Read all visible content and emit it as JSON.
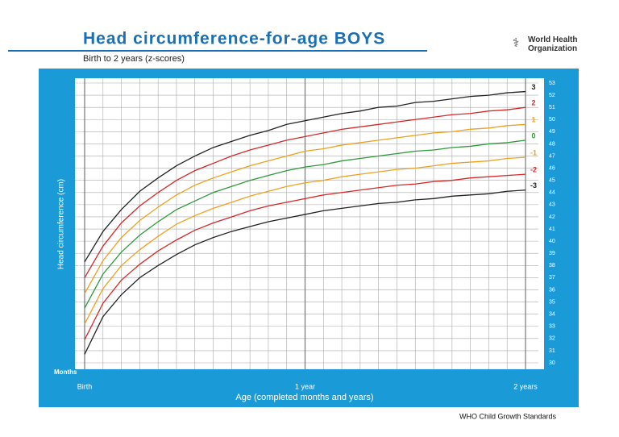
{
  "chart_data": {
    "type": "line",
    "title": "Head circumference-for-age BOYS",
    "subtitle": "Birth to 2 years (z-scores)",
    "organization": "World Health Organization",
    "footer": "WHO Child Growth Standards",
    "xlabel": "Age (completed months and years)",
    "ylabel": "Head circumference (cm)",
    "x_unit_label": "Months",
    "x": [
      0,
      1,
      2,
      3,
      4,
      5,
      6,
      7,
      8,
      9,
      10,
      11,
      12,
      13,
      14,
      15,
      16,
      17,
      18,
      19,
      20,
      21,
      22,
      23,
      24
    ],
    "xlim": [
      0,
      24
    ],
    "xticks": [
      {
        "value": 0,
        "label": "Birth"
      },
      {
        "value": 12,
        "label": "1 year"
      },
      {
        "value": 24,
        "label": "2 years"
      }
    ],
    "ylim": [
      30,
      53
    ],
    "yticks": [
      30,
      31,
      32,
      33,
      34,
      35,
      36,
      37,
      38,
      39,
      40,
      41,
      42,
      43,
      44,
      45,
      46,
      47,
      48,
      49,
      50,
      51,
      52,
      53
    ],
    "grid": true,
    "series": [
      {
        "name": "3",
        "color": "#222222",
        "values": [
          38.3,
          40.8,
          42.6,
          44.1,
          45.2,
          46.2,
          47.0,
          47.7,
          48.2,
          48.7,
          49.1,
          49.6,
          49.9,
          50.2,
          50.5,
          50.7,
          51.0,
          51.1,
          51.4,
          51.5,
          51.7,
          51.9,
          52.0,
          52.2,
          52.3
        ]
      },
      {
        "name": "2",
        "color": "#d62828",
        "values": [
          37.0,
          39.6,
          41.5,
          42.9,
          44.0,
          45.0,
          45.8,
          46.4,
          47.0,
          47.5,
          47.9,
          48.3,
          48.6,
          48.9,
          49.2,
          49.4,
          49.6,
          49.8,
          50.0,
          50.2,
          50.4,
          50.5,
          50.7,
          50.8,
          51.0
        ]
      },
      {
        "name": "1",
        "color": "#f0a020",
        "values": [
          35.7,
          38.4,
          40.3,
          41.7,
          42.8,
          43.8,
          44.6,
          45.2,
          45.7,
          46.2,
          46.6,
          47.0,
          47.4,
          47.6,
          47.9,
          48.1,
          48.3,
          48.5,
          48.7,
          48.9,
          49.0,
          49.2,
          49.3,
          49.5,
          49.6
        ]
      },
      {
        "name": "0",
        "color": "#2e9a3a",
        "values": [
          34.5,
          37.3,
          39.1,
          40.5,
          41.6,
          42.6,
          43.3,
          44.0,
          44.5,
          45.0,
          45.4,
          45.8,
          46.1,
          46.3,
          46.6,
          46.8,
          47.0,
          47.2,
          47.4,
          47.5,
          47.7,
          47.8,
          48.0,
          48.1,
          48.3
        ]
      },
      {
        "name": "-1",
        "color": "#f0a020",
        "values": [
          33.2,
          36.1,
          38.0,
          39.3,
          40.4,
          41.4,
          42.1,
          42.7,
          43.2,
          43.7,
          44.1,
          44.5,
          44.8,
          45.0,
          45.3,
          45.5,
          45.7,
          45.9,
          46.0,
          46.2,
          46.4,
          46.5,
          46.6,
          46.8,
          46.9
        ]
      },
      {
        "name": "-2",
        "color": "#d62828",
        "values": [
          31.9,
          34.9,
          36.8,
          38.1,
          39.2,
          40.1,
          40.9,
          41.5,
          42.0,
          42.5,
          42.9,
          43.2,
          43.5,
          43.8,
          44.0,
          44.2,
          44.4,
          44.6,
          44.7,
          44.9,
          45.0,
          45.2,
          45.3,
          45.4,
          45.5
        ]
      },
      {
        "name": "-3",
        "color": "#222222",
        "values": [
          30.7,
          33.8,
          35.6,
          37.0,
          38.0,
          38.9,
          39.7,
          40.3,
          40.8,
          41.2,
          41.6,
          41.9,
          42.2,
          42.5,
          42.7,
          42.9,
          43.1,
          43.2,
          43.4,
          43.5,
          43.7,
          43.8,
          43.9,
          44.1,
          44.2
        ]
      }
    ]
  }
}
